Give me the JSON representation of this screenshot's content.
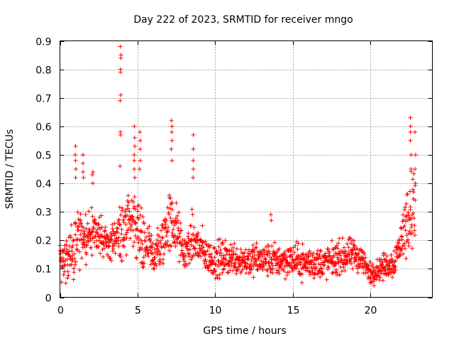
{
  "chart_data": {
    "type": "scatter",
    "title": "Day 222 of 2023, SRMTID for receiver mngo",
    "xlabel": "GPS time / hours",
    "ylabel": "SRMTID / TECUs",
    "xlim": [
      0,
      24
    ],
    "ylim": [
      0,
      0.9
    ],
    "xticks": [
      0,
      5,
      10,
      15,
      20
    ],
    "yticks": [
      0,
      0.1,
      0.2,
      0.3,
      0.4,
      0.5,
      0.6,
      0.7,
      0.8,
      0.9
    ],
    "grid": true,
    "marker": "+",
    "color": "#ff0000",
    "series": [
      {
        "name": "SRMTID",
        "profile": [
          {
            "t": 0.0,
            "base": 0.14,
            "spread": 0.06
          },
          {
            "t": 0.5,
            "base": 0.12,
            "spread": 0.07
          },
          {
            "t": 1.0,
            "base": 0.2,
            "spread": 0.12
          },
          {
            "t": 1.5,
            "base": 0.22,
            "spread": 0.1
          },
          {
            "t": 2.0,
            "base": 0.21,
            "spread": 0.09
          },
          {
            "t": 2.5,
            "base": 0.23,
            "spread": 0.07
          },
          {
            "t": 3.0,
            "base": 0.19,
            "spread": 0.07
          },
          {
            "t": 3.5,
            "base": 0.2,
            "spread": 0.07
          },
          {
            "t": 4.0,
            "base": 0.24,
            "spread": 0.1
          },
          {
            "t": 4.5,
            "base": 0.26,
            "spread": 0.11
          },
          {
            "t": 5.0,
            "base": 0.25,
            "spread": 0.12
          },
          {
            "t": 5.5,
            "base": 0.18,
            "spread": 0.1
          },
          {
            "t": 6.0,
            "base": 0.15,
            "spread": 0.08
          },
          {
            "t": 6.5,
            "base": 0.17,
            "spread": 0.09
          },
          {
            "t": 7.0,
            "base": 0.27,
            "spread": 0.12
          },
          {
            "t": 7.5,
            "base": 0.24,
            "spread": 0.1
          },
          {
            "t": 8.0,
            "base": 0.15,
            "spread": 0.06
          },
          {
            "t": 8.5,
            "base": 0.2,
            "spread": 0.09
          },
          {
            "t": 9.0,
            "base": 0.18,
            "spread": 0.08
          },
          {
            "t": 9.5,
            "base": 0.14,
            "spread": 0.06
          },
          {
            "t": 10.0,
            "base": 0.13,
            "spread": 0.07
          },
          {
            "t": 11.0,
            "base": 0.14,
            "spread": 0.06
          },
          {
            "t": 12.0,
            "base": 0.13,
            "spread": 0.06
          },
          {
            "t": 13.0,
            "base": 0.13,
            "spread": 0.06
          },
          {
            "t": 14.0,
            "base": 0.13,
            "spread": 0.06
          },
          {
            "t": 15.0,
            "base": 0.13,
            "spread": 0.06
          },
          {
            "t": 16.0,
            "base": 0.12,
            "spread": 0.06
          },
          {
            "t": 17.0,
            "base": 0.12,
            "spread": 0.06
          },
          {
            "t": 18.0,
            "base": 0.14,
            "spread": 0.06
          },
          {
            "t": 19.0,
            "base": 0.15,
            "spread": 0.06
          },
          {
            "t": 19.5,
            "base": 0.13,
            "spread": 0.05
          },
          {
            "t": 20.0,
            "base": 0.08,
            "spread": 0.04
          },
          {
            "t": 20.5,
            "base": 0.1,
            "spread": 0.04
          },
          {
            "t": 21.0,
            "base": 0.11,
            "spread": 0.05
          },
          {
            "t": 21.5,
            "base": 0.12,
            "spread": 0.05
          },
          {
            "t": 22.0,
            "base": 0.2,
            "spread": 0.08
          },
          {
            "t": 22.5,
            "base": 0.3,
            "spread": 0.14
          },
          {
            "t": 22.9,
            "base": 0.32,
            "spread": 0.14
          }
        ],
        "spikes": [
          {
            "x": 3.9,
            "values": [
              0.88,
              0.85,
              0.84,
              0.8,
              0.79,
              0.71,
              0.69,
              0.58,
              0.57,
              0.46
            ]
          },
          {
            "x": 4.8,
            "values": [
              0.6,
              0.56,
              0.53,
              0.5,
              0.48,
              0.45,
              0.42
            ]
          },
          {
            "x": 5.15,
            "values": [
              0.58,
              0.55,
              0.52,
              0.48,
              0.45
            ]
          },
          {
            "x": 7.2,
            "values": [
              0.62,
              0.6,
              0.58,
              0.55,
              0.52,
              0.48
            ]
          },
          {
            "x": 8.6,
            "values": [
              0.57,
              0.52,
              0.48,
              0.45,
              0.42
            ]
          },
          {
            "x": 1.0,
            "values": [
              0.53,
              0.5,
              0.48,
              0.45,
              0.42
            ]
          },
          {
            "x": 1.5,
            "values": [
              0.5,
              0.47,
              0.44,
              0.42
            ]
          },
          {
            "x": 2.1,
            "values": [
              0.44,
              0.43,
              0.4
            ]
          },
          {
            "x": 13.6,
            "values": [
              0.29,
              0.27
            ]
          },
          {
            "x": 22.6,
            "values": [
              0.63,
              0.6,
              0.58,
              0.55,
              0.5,
              0.45
            ]
          },
          {
            "x": 22.9,
            "values": [
              0.58,
              0.5,
              0.45,
              0.4
            ]
          }
        ]
      }
    ]
  }
}
